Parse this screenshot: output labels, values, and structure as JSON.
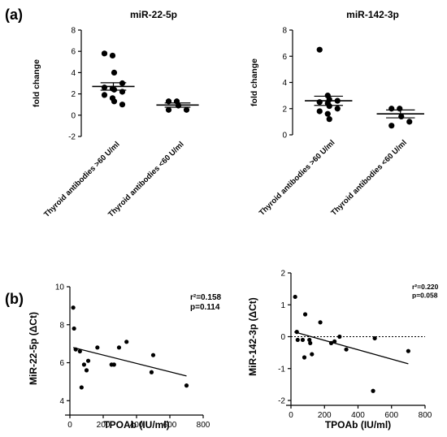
{
  "panel_labels": [
    "(a)",
    "(b)"
  ],
  "chart_data": [
    {
      "type": "scatter",
      "subtype": "dot-plot-mean-sem",
      "title": "miR-22-5p",
      "ylabel": "fold change",
      "xlabel": "",
      "ylim": [
        -2,
        8
      ],
      "yticks": [
        -2,
        0,
        2,
        4,
        6,
        8
      ],
      "categories": [
        "Thyroid antibodies >60 U/ml",
        "Thyroid antibodies <60 U/ml"
      ],
      "groups": [
        {
          "category": "Thyroid antibodies >60 U/ml",
          "mean": 2.7,
          "sem": 0.35,
          "points": [
            5.8,
            5.6,
            4.0,
            3.0,
            2.6,
            2.5,
            2.4,
            2.2,
            1.9,
            1.6,
            1.3,
            1.0
          ]
        },
        {
          "category": "Thyroid antibodies <60 U/ml",
          "mean": 0.95,
          "sem": 0.2,
          "points": [
            1.3,
            1.3,
            0.9,
            0.5,
            0.5
          ]
        }
      ],
      "grid": false
    },
    {
      "type": "scatter",
      "subtype": "dot-plot-mean-sem",
      "title": "miR-142-3p",
      "ylabel": "fold change",
      "xlabel": "",
      "ylim": [
        0,
        8
      ],
      "yticks": [
        0,
        2,
        4,
        6,
        8
      ],
      "categories": [
        "Thyroid antibodies >60 U/ml",
        "Thyroid antibodies <60 U/ml"
      ],
      "groups": [
        {
          "category": "Thyroid antibodies >60 U/ml",
          "mean": 2.6,
          "sem": 0.35,
          "points": [
            6.5,
            3.0,
            2.7,
            2.6,
            2.5,
            2.4,
            2.2,
            2.0,
            1.8,
            1.6,
            1.2
          ]
        },
        {
          "category": "Thyroid antibodies <60 U/ml",
          "mean": 1.6,
          "sem": 0.3,
          "points": [
            2.0,
            2.0,
            1.4,
            1.0,
            0.7
          ]
        }
      ],
      "grid": false
    },
    {
      "type": "scatter",
      "title": "",
      "xlabel": "TPOAb (IU/ml)",
      "ylabel": "MiR-22-5p (ΔCt)",
      "xlim": [
        0,
        800
      ],
      "ylim": [
        3.5,
        10
      ],
      "xticks": [
        0,
        200,
        400,
        600,
        800
      ],
      "yticks": [
        4,
        6,
        8,
        10
      ],
      "annotations": [
        "r²=0.158",
        "p=0.114"
      ],
      "points": [
        {
          "x": 20,
          "y": 8.9
        },
        {
          "x": 25,
          "y": 7.8
        },
        {
          "x": 35,
          "y": 6.7
        },
        {
          "x": 60,
          "y": 6.6
        },
        {
          "x": 70,
          "y": 4.7
        },
        {
          "x": 85,
          "y": 5.9
        },
        {
          "x": 100,
          "y": 5.6
        },
        {
          "x": 110,
          "y": 6.1
        },
        {
          "x": 165,
          "y": 6.8
        },
        {
          "x": 250,
          "y": 5.9
        },
        {
          "x": 265,
          "y": 5.9
        },
        {
          "x": 295,
          "y": 6.8
        },
        {
          "x": 340,
          "y": 7.1
        },
        {
          "x": 490,
          "y": 5.5
        },
        {
          "x": 500,
          "y": 6.4
        },
        {
          "x": 700,
          "y": 4.8
        }
      ],
      "trendline": {
        "x": [
          20,
          700
        ],
        "y": [
          6.8,
          5.3
        ]
      },
      "grid": false
    },
    {
      "type": "scatter",
      "title": "",
      "xlabel": "TPOAb (IU/ml)",
      "ylabel": "MiR-142-3p (ΔCt)",
      "xlim": [
        0,
        800
      ],
      "ylim": [
        -2,
        2
      ],
      "xticks": [
        0,
        200,
        400,
        600,
        800
      ],
      "yticks": [
        -2,
        -1,
        0,
        1,
        2
      ],
      "annotations": [
        "r²=0.220",
        "p=0.058"
      ],
      "points": [
        {
          "x": 25,
          "y": 1.25
        },
        {
          "x": 35,
          "y": 0.15
        },
        {
          "x": 40,
          "y": -0.1
        },
        {
          "x": 70,
          "y": -0.1
        },
        {
          "x": 80,
          "y": -0.65
        },
        {
          "x": 85,
          "y": 0.7
        },
        {
          "x": 110,
          "y": -0.1
        },
        {
          "x": 115,
          "y": -0.2
        },
        {
          "x": 125,
          "y": -0.55
        },
        {
          "x": 175,
          "y": 0.45
        },
        {
          "x": 240,
          "y": -0.2
        },
        {
          "x": 260,
          "y": -0.15
        },
        {
          "x": 290,
          "y": 0.0
        },
        {
          "x": 330,
          "y": -0.4
        },
        {
          "x": 490,
          "y": -1.7
        },
        {
          "x": 500,
          "y": -0.05
        },
        {
          "x": 700,
          "y": -0.45
        }
      ],
      "trendline": {
        "x": [
          20,
          700
        ],
        "y": [
          0.15,
          -0.85
        ]
      },
      "reference_line": {
        "y": 0,
        "style": "dotted"
      },
      "grid": false
    }
  ]
}
